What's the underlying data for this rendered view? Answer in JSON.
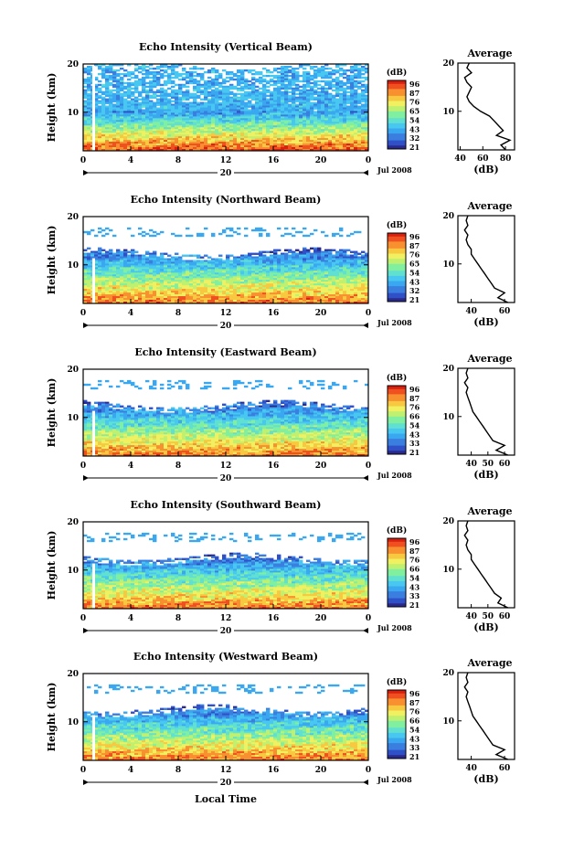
{
  "footer": {
    "xlabel": "Local Time"
  },
  "colorbar": {
    "unit": "(dB)",
    "labels_a": [
      "96",
      "87",
      "76",
      "65",
      "54",
      "43",
      "32",
      "21"
    ],
    "labels_b": [
      "96",
      "87",
      "76",
      "66",
      "54",
      "43",
      "33",
      "21"
    ],
    "colors": [
      "#2a2a8c",
      "#3050c8",
      "#3a7ee0",
      "#3aa8f0",
      "#48c8f0",
      "#60e0d0",
      "#80f0a0",
      "#c0f070",
      "#f0f060",
      "#f8c840",
      "#f89030",
      "#f05020",
      "#d82010"
    ]
  },
  "chart_data": [
    {
      "type": "heatmap",
      "title": "Echo Intensity (Vertical Beam)",
      "ylabel": "Height (km)",
      "xticks": [
        "0",
        "4",
        "8",
        "12",
        "16",
        "20",
        "0"
      ],
      "yticks": [
        "20",
        "10"
      ],
      "date_label": "20",
      "month_label": "Jul 2008",
      "ylim": [
        2,
        20
      ],
      "xlim": [
        0,
        24
      ],
      "colorbar_labels": "a",
      "profile": {
        "title": "Average",
        "xlabel": "(dB)",
        "xticks": [
          "40",
          "60",
          "80"
        ],
        "yticks": [
          "20",
          "10"
        ],
        "xlim": [
          38,
          88
        ],
        "height_km": [
          2,
          3,
          4,
          5,
          6,
          7,
          8,
          9,
          10,
          11,
          12,
          13,
          14,
          15,
          16,
          17,
          18,
          19,
          20
        ],
        "db": [
          80,
          76,
          84,
          72,
          78,
          74,
          70,
          66,
          58,
          52,
          48,
          46,
          48,
          50,
          46,
          44,
          50,
          46,
          48
        ]
      }
    },
    {
      "type": "heatmap",
      "title": "Echo Intensity (Northward Beam)",
      "ylabel": "Height (km)",
      "xticks": [
        "0",
        "4",
        "8",
        "12",
        "16",
        "20",
        "0"
      ],
      "yticks": [
        "20",
        "10"
      ],
      "date_label": "20",
      "month_label": "Jul 2008",
      "ylim": [
        2,
        20
      ],
      "xlim": [
        0,
        24
      ],
      "colorbar_labels": "a",
      "profile": {
        "title": "Average",
        "xlabel": "(dB)",
        "xticks": [
          "40",
          "60"
        ],
        "yticks": [
          "20",
          "10"
        ],
        "xlim": [
          32,
          66
        ],
        "height_km": [
          2,
          3,
          4,
          5,
          6,
          7,
          8,
          9,
          10,
          11,
          12,
          13,
          14,
          15,
          16,
          17,
          18,
          19,
          20
        ],
        "db": [
          62,
          56,
          60,
          54,
          52,
          50,
          48,
          46,
          44,
          42,
          40,
          40,
          38,
          37,
          38,
          36,
          38,
          37,
          38
        ]
      }
    },
    {
      "type": "heatmap",
      "title": "Echo Intensity (Eastward Beam)",
      "ylabel": "Height (km)",
      "xticks": [
        "0",
        "4",
        "8",
        "12",
        "16",
        "20",
        "0"
      ],
      "yticks": [
        "20",
        "10"
      ],
      "date_label": "20",
      "month_label": "Jul 2008",
      "ylim": [
        2,
        20
      ],
      "xlim": [
        0,
        24
      ],
      "colorbar_labels": "b",
      "profile": {
        "title": "Average",
        "xlabel": "(dB)",
        "xticks": [
          "40",
          "50",
          "60"
        ],
        "yticks": [
          "20",
          "10"
        ],
        "xlim": [
          32,
          66
        ],
        "height_km": [
          2,
          3,
          4,
          5,
          6,
          7,
          8,
          9,
          10,
          11,
          12,
          13,
          14,
          15,
          16,
          17,
          18,
          19,
          20
        ],
        "db": [
          62,
          55,
          60,
          53,
          51,
          49,
          47,
          45,
          43,
          41,
          40,
          39,
          38,
          37,
          38,
          36,
          38,
          37,
          38
        ]
      }
    },
    {
      "type": "heatmap",
      "title": "Echo Intensity (Southward Beam)",
      "ylabel": "Height (km)",
      "xticks": [
        "0",
        "4",
        "8",
        "12",
        "16",
        "20",
        "0"
      ],
      "yticks": [
        "20",
        "10"
      ],
      "date_label": "20",
      "month_label": "Jul 2008",
      "ylim": [
        2,
        20
      ],
      "xlim": [
        0,
        24
      ],
      "colorbar_labels": "b",
      "profile": {
        "title": "Average",
        "xlabel": "(dB)",
        "xticks": [
          "40",
          "50",
          "60"
        ],
        "yticks": [
          "20",
          "10"
        ],
        "xlim": [
          32,
          66
        ],
        "height_km": [
          2,
          3,
          4,
          5,
          6,
          7,
          8,
          9,
          10,
          11,
          12,
          13,
          14,
          15,
          16,
          17,
          18,
          19,
          20
        ],
        "db": [
          62,
          56,
          58,
          54,
          52,
          50,
          48,
          46,
          44,
          42,
          40,
          40,
          38,
          37,
          38,
          36,
          38,
          37,
          38
        ]
      }
    },
    {
      "type": "heatmap",
      "title": "Echo Intensity (Westward Beam)",
      "ylabel": "Height (km)",
      "xticks": [
        "0",
        "4",
        "8",
        "12",
        "16",
        "20",
        "0"
      ],
      "yticks": [
        "20",
        "10"
      ],
      "date_label": "20",
      "month_label": "Jul 2008",
      "ylim": [
        2,
        20
      ],
      "xlim": [
        0,
        24
      ],
      "colorbar_labels": "b",
      "profile": {
        "title": "Average",
        "xlabel": "(dB)",
        "xticks": [
          "40",
          "60"
        ],
        "yticks": [
          "20",
          "10"
        ],
        "xlim": [
          32,
          66
        ],
        "height_km": [
          2,
          3,
          4,
          5,
          6,
          7,
          8,
          9,
          10,
          11,
          12,
          13,
          14,
          15,
          16,
          17,
          18,
          19,
          20
        ],
        "db": [
          62,
          55,
          60,
          53,
          51,
          49,
          47,
          45,
          43,
          41,
          40,
          39,
          38,
          37,
          38,
          36,
          38,
          37,
          38
        ]
      }
    }
  ]
}
